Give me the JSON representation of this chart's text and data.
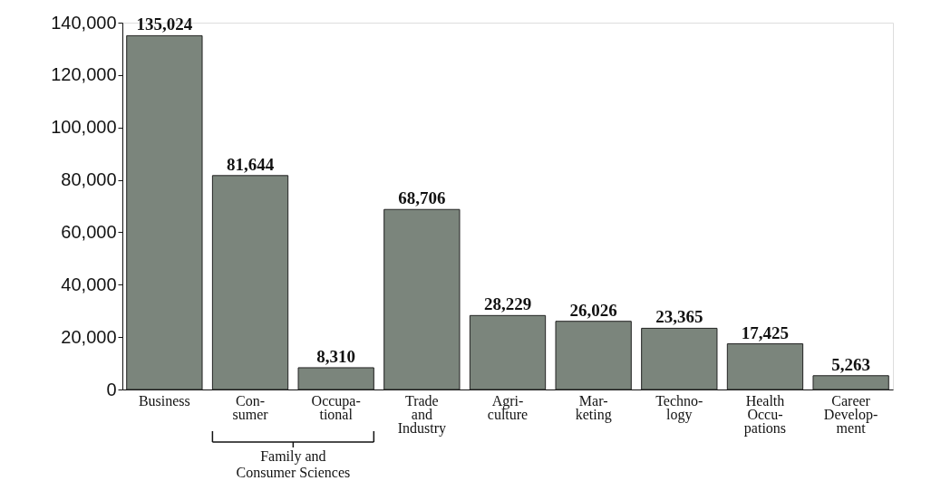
{
  "chart_data": {
    "type": "bar",
    "categories": [
      "Business",
      "Con-\nsumer",
      "Occupa-\ntional",
      "Trade\nand\nIndustry",
      "Agri-\nculture",
      "Mar-\nketing",
      "Techno-\nlogy",
      "Health\nOccu-\npations",
      "Career\nDevelop-\nment"
    ],
    "values": [
      135024,
      81644,
      8310,
      68706,
      28229,
      26026,
      23365,
      17425,
      5263
    ],
    "color": "#7b857c",
    "ylim": [
      0,
      140000
    ],
    "yticks": [
      {
        "value": 0,
        "label": "0"
      },
      {
        "value": 20000,
        "label": "20,000"
      },
      {
        "value": 40000,
        "label": "40,000"
      },
      {
        "value": 60000,
        "label": "60,000"
      },
      {
        "value": 80000,
        "label": "80,000"
      },
      {
        "value": 100000,
        "label": "100,000"
      },
      {
        "value": 120000,
        "label": "120,000"
      },
      {
        "value": 140000,
        "label": "140,000"
      }
    ],
    "value_labels": [
      "135,024",
      "81,644",
      "8,310",
      "68,706",
      "28,229",
      "26,026",
      "23,365",
      "17,425",
      "5,263"
    ],
    "annotations": [
      "Family and\nConsumer Sciences"
    ],
    "grid": false
  }
}
